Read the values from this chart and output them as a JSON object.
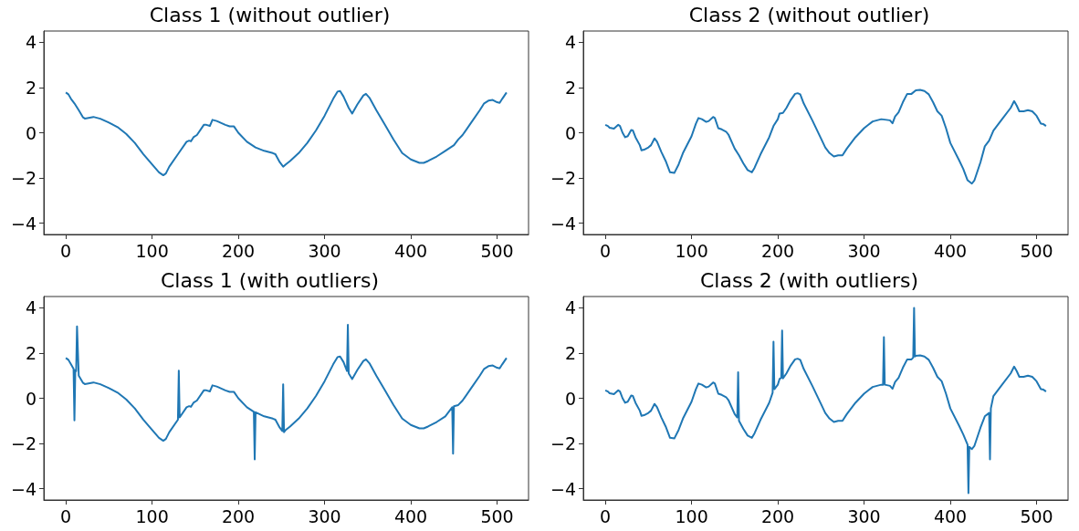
{
  "chart_data": [
    {
      "type": "line",
      "title": "Class 1 (without outlier)",
      "color": "#1f77b4",
      "xlim": [
        -25.5,
        536.5
      ],
      "ylim": [
        -4.5,
        4.5
      ],
      "xticks": [
        0,
        100,
        200,
        300,
        400,
        500
      ],
      "yticks": [
        -4,
        -2,
        0,
        2,
        4
      ],
      "x": [
        0,
        3,
        6,
        10,
        15,
        20,
        22,
        25,
        32,
        40,
        50,
        60,
        70,
        80,
        90,
        100,
        108,
        113,
        116,
        120,
        130,
        140,
        143,
        145,
        148,
        152,
        160,
        163,
        167,
        170,
        175,
        185,
        190,
        195,
        200,
        210,
        220,
        230,
        240,
        243,
        248,
        252,
        255,
        260,
        270,
        280,
        290,
        300,
        310,
        315,
        318,
        322,
        328,
        332,
        338,
        345,
        348,
        352,
        360,
        370,
        380,
        390,
        400,
        410,
        415,
        420,
        430,
        440,
        450,
        455,
        460,
        470,
        480,
        485,
        490,
        495,
        500,
        503,
        506,
        511
      ],
      "values": [
        1.78,
        1.7,
        1.5,
        1.3,
        1.0,
        0.68,
        0.63,
        0.65,
        0.7,
        0.62,
        0.45,
        0.25,
        -0.05,
        -0.45,
        -0.95,
        -1.4,
        -1.75,
        -1.88,
        -1.8,
        -1.5,
        -0.95,
        -0.4,
        -0.35,
        -0.38,
        -0.2,
        -0.1,
        0.35,
        0.35,
        0.3,
        0.57,
        0.52,
        0.35,
        0.28,
        0.28,
        0,
        -0.4,
        -0.65,
        -0.8,
        -0.9,
        -0.95,
        -1.3,
        -1.5,
        -1.4,
        -1.25,
        -0.9,
        -0.45,
        0.1,
        0.75,
        1.5,
        1.82,
        1.85,
        1.6,
        1.1,
        0.85,
        1.25,
        1.65,
        1.72,
        1.55,
        1.0,
        0.35,
        -0.3,
        -0.9,
        -1.18,
        -1.33,
        -1.33,
        -1.25,
        -1.05,
        -0.8,
        -0.55,
        -0.3,
        -0.1,
        0.45,
        1.0,
        1.3,
        1.42,
        1.45,
        1.35,
        1.32,
        1.5,
        1.78
      ]
    },
    {
      "type": "line",
      "title": "Class 2 (without outlier)",
      "color": "#1f77b4",
      "xlim": [
        -25.5,
        536.5
      ],
      "ylim": [
        -4.5,
        4.5
      ],
      "xticks": [
        0,
        100,
        200,
        300,
        400,
        500
      ],
      "yticks": [
        -4,
        -2,
        0,
        2,
        4
      ],
      "x": [
        0,
        3,
        5,
        10,
        15,
        17,
        20,
        23,
        26,
        30,
        32,
        35,
        40,
        42,
        45,
        50,
        53,
        57,
        60,
        65,
        70,
        75,
        80,
        85,
        90,
        100,
        105,
        108,
        112,
        117,
        120,
        125,
        127,
        131,
        135,
        140,
        143,
        150,
        155,
        160,
        165,
        170,
        173,
        180,
        190,
        195,
        200,
        202,
        206,
        210,
        215,
        220,
        223,
        226,
        230,
        240,
        250,
        255,
        260,
        265,
        270,
        275,
        280,
        290,
        300,
        305,
        310,
        320,
        330,
        333,
        336,
        340,
        345,
        350,
        355,
        360,
        365,
        370,
        375,
        380,
        385,
        390,
        395,
        400,
        410,
        415,
        420,
        425,
        428,
        435,
        440,
        445,
        450,
        460,
        470,
        474,
        477,
        480,
        485,
        490,
        495,
        500,
        505,
        508,
        511
      ],
      "values": [
        0.35,
        0.3,
        0.22,
        0.18,
        0.35,
        0.3,
        0.0,
        -0.2,
        -0.15,
        0.12,
        0.1,
        -0.2,
        -0.55,
        -0.78,
        -0.75,
        -0.65,
        -0.55,
        -0.25,
        -0.4,
        -0.85,
        -1.25,
        -1.75,
        -1.78,
        -1.4,
        -0.9,
        -0.15,
        0.4,
        0.65,
        0.6,
        0.48,
        0.52,
        0.7,
        0.65,
        0.2,
        0.15,
        0.05,
        -0.1,
        -0.7,
        -1.0,
        -1.35,
        -1.65,
        -1.75,
        -1.55,
        -0.95,
        -0.2,
        0.3,
        0.6,
        0.85,
        0.88,
        1.1,
        1.45,
        1.72,
        1.75,
        1.7,
        1.3,
        0.55,
        -0.25,
        -0.65,
        -0.9,
        -1.05,
        -1.0,
        -1.0,
        -0.7,
        -0.2,
        0.2,
        0.35,
        0.5,
        0.6,
        0.55,
        0.42,
        0.72,
        0.9,
        1.35,
        1.72,
        1.72,
        1.88,
        1.9,
        1.85,
        1.7,
        1.35,
        0.95,
        0.75,
        0.2,
        -0.45,
        -1.2,
        -1.6,
        -2.1,
        -2.25,
        -2.1,
        -1.3,
        -0.6,
        -0.35,
        0.1,
        0.6,
        1.1,
        1.4,
        1.2,
        0.95,
        0.95,
        1.0,
        0.95,
        0.75,
        0.4,
        0.38,
        0.3
      ]
    },
    {
      "type": "line",
      "title": "Class 1 (with outliers)",
      "color": "#1f77b4",
      "xlim": [
        -25.5,
        536.5
      ],
      "ylim": [
        -4.5,
        4.5
      ],
      "xticks": [
        0,
        100,
        200,
        300,
        400,
        500
      ],
      "yticks": [
        -4,
        -2,
        0,
        2,
        4
      ],
      "x": [
        0,
        3,
        6,
        9,
        10,
        11,
        12,
        13,
        15,
        20,
        22,
        25,
        32,
        40,
        50,
        60,
        70,
        80,
        90,
        100,
        108,
        113,
        116,
        120,
        130,
        131,
        132,
        140,
        143,
        145,
        148,
        152,
        160,
        163,
        167,
        170,
        175,
        185,
        190,
        195,
        200,
        210,
        218,
        219,
        220,
        230,
        240,
        243,
        248,
        251,
        252,
        253,
        255,
        260,
        270,
        280,
        290,
        300,
        310,
        315,
        318,
        322,
        326,
        327,
        328,
        332,
        338,
        345,
        348,
        352,
        360,
        370,
        380,
        390,
        400,
        410,
        415,
        420,
        430,
        440,
        448,
        449,
        450,
        455,
        460,
        470,
        480,
        485,
        490,
        495,
        500,
        503,
        506,
        511
      ],
      "values": [
        1.78,
        1.7,
        1.5,
        1.3,
        -0.98,
        1.25,
        1.2,
        3.18,
        1.0,
        0.68,
        0.63,
        0.65,
        0.7,
        0.62,
        0.45,
        0.25,
        -0.05,
        -0.45,
        -0.95,
        -1.4,
        -1.75,
        -1.88,
        -1.8,
        -1.5,
        -0.95,
        1.22,
        -0.85,
        -0.4,
        -0.35,
        -0.38,
        -0.2,
        -0.1,
        0.35,
        0.35,
        0.3,
        0.57,
        0.52,
        0.35,
        0.28,
        0.28,
        0,
        -0.4,
        -0.6,
        -2.7,
        -0.62,
        -0.8,
        -0.9,
        -0.95,
        -1.3,
        -1.45,
        0.62,
        -1.5,
        -1.4,
        -1.25,
        -0.9,
        -0.45,
        0.1,
        0.75,
        1.5,
        1.82,
        1.85,
        1.6,
        1.2,
        3.25,
        1.1,
        0.85,
        1.25,
        1.65,
        1.72,
        1.55,
        1.0,
        0.35,
        -0.3,
        -0.9,
        -1.18,
        -1.33,
        -1.33,
        -1.25,
        -1.05,
        -0.8,
        -0.4,
        -2.45,
        -0.35,
        -0.3,
        -0.1,
        0.45,
        1.0,
        1.3,
        1.42,
        1.45,
        1.35,
        1.32,
        1.5,
        1.78
      ]
    },
    {
      "type": "line",
      "title": "Class 2 (with outliers)",
      "color": "#1f77b4",
      "xlim": [
        -25.5,
        536.5
      ],
      "ylim": [
        -4.5,
        4.5
      ],
      "xticks": [
        0,
        100,
        200,
        300,
        400,
        500
      ],
      "yticks": [
        -4,
        -2,
        0,
        2,
        4
      ],
      "x": [
        0,
        3,
        5,
        10,
        15,
        17,
        20,
        23,
        26,
        30,
        32,
        35,
        40,
        42,
        45,
        50,
        53,
        57,
        60,
        65,
        70,
        75,
        80,
        85,
        90,
        100,
        105,
        108,
        112,
        117,
        120,
        125,
        127,
        131,
        135,
        140,
        143,
        150,
        153,
        154,
        155,
        160,
        165,
        170,
        173,
        180,
        190,
        194,
        195,
        196,
        200,
        202,
        204,
        205,
        206,
        210,
        215,
        220,
        223,
        226,
        230,
        240,
        250,
        255,
        260,
        265,
        270,
        275,
        280,
        290,
        300,
        305,
        310,
        320,
        322,
        323,
        324,
        330,
        333,
        336,
        340,
        345,
        350,
        355,
        357,
        358,
        359,
        360,
        365,
        370,
        375,
        380,
        385,
        390,
        395,
        400,
        410,
        415,
        420,
        421,
        422,
        425,
        428,
        435,
        440,
        445,
        446,
        447,
        450,
        460,
        470,
        474,
        477,
        480,
        485,
        490,
        495,
        500,
        505,
        508,
        511
      ],
      "values": [
        0.35,
        0.3,
        0.22,
        0.18,
        0.35,
        0.3,
        0.0,
        -0.2,
        -0.15,
        0.12,
        0.1,
        -0.2,
        -0.55,
        -0.78,
        -0.75,
        -0.65,
        -0.55,
        -0.25,
        -0.4,
        -0.85,
        -1.25,
        -1.75,
        -1.78,
        -1.4,
        -0.9,
        -0.15,
        0.4,
        0.65,
        0.6,
        0.48,
        0.52,
        0.7,
        0.65,
        0.2,
        0.15,
        0.05,
        -0.1,
        -0.7,
        -0.85,
        1.15,
        -1.0,
        -1.35,
        -1.65,
        -1.75,
        -1.55,
        -0.95,
        -0.2,
        0.25,
        2.5,
        0.4,
        0.6,
        0.85,
        0.9,
        3.0,
        0.88,
        1.1,
        1.45,
        1.72,
        1.75,
        1.7,
        1.3,
        0.55,
        -0.25,
        -0.65,
        -0.9,
        -1.05,
        -1.0,
        -1.0,
        -0.7,
        -0.2,
        0.2,
        0.35,
        0.5,
        0.6,
        0.6,
        2.7,
        0.6,
        0.55,
        0.42,
        0.72,
        0.9,
        1.35,
        1.72,
        1.72,
        1.8,
        4.0,
        1.85,
        1.88,
        1.9,
        1.85,
        1.7,
        1.35,
        0.95,
        0.75,
        0.2,
        -0.45,
        -1.2,
        -1.6,
        -2.05,
        -4.2,
        -2.15,
        -2.25,
        -2.1,
        -1.3,
        -0.8,
        -0.65,
        -2.7,
        -0.45,
        0.1,
        0.6,
        1.1,
        1.4,
        1.2,
        0.95,
        0.95,
        1.0,
        0.95,
        0.75,
        0.4,
        0.38,
        0.3
      ]
    }
  ]
}
